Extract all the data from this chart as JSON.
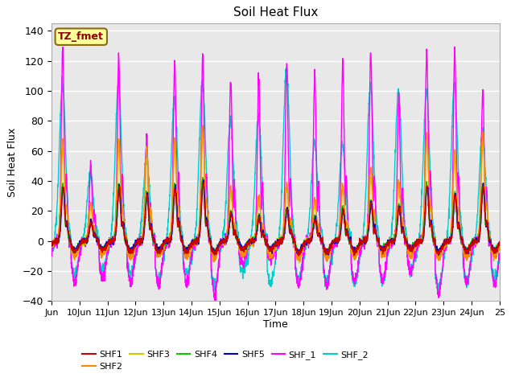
{
  "title": "Soil Heat Flux",
  "xlabel": "Time",
  "ylabel": "Soil Heat Flux",
  "xlim_start": 9,
  "xlim_end": 25,
  "ylim": [
    -40,
    145
  ],
  "yticks": [
    -40,
    -20,
    0,
    20,
    40,
    60,
    80,
    100,
    120,
    140
  ],
  "xtick_labels": [
    "Jun",
    "10Jun",
    "11Jun",
    "12Jun",
    "13Jun",
    "14Jun",
    "15Jun",
    "16Jun",
    "17Jun",
    "18Jun",
    "19Jun",
    "20Jun",
    "21Jun",
    "22Jun",
    "23Jun",
    "24Jun",
    "25"
  ],
  "xtick_positions": [
    9,
    10,
    11,
    12,
    13,
    14,
    15,
    16,
    17,
    18,
    19,
    20,
    21,
    22,
    23,
    24,
    25
  ],
  "annotation_text": "TZ_fmet",
  "annotation_color": "#8B0000",
  "annotation_bg": "#FFFF99",
  "annotation_border": "#8B6914",
  "series_colors": {
    "SHF1": "#cc0000",
    "SHF2": "#ff8800",
    "SHF3": "#cccc00",
    "SHF4": "#00cc00",
    "SHF5": "#0000cc",
    "SHF_1": "#ff00ff",
    "SHF_2": "#00cccc"
  },
  "background_color": "#ffffff",
  "plot_bg_color": "#e8e8e8",
  "grid_color": "#ffffff",
  "n_days": 16,
  "points_per_day": 144,
  "day_start": 9
}
